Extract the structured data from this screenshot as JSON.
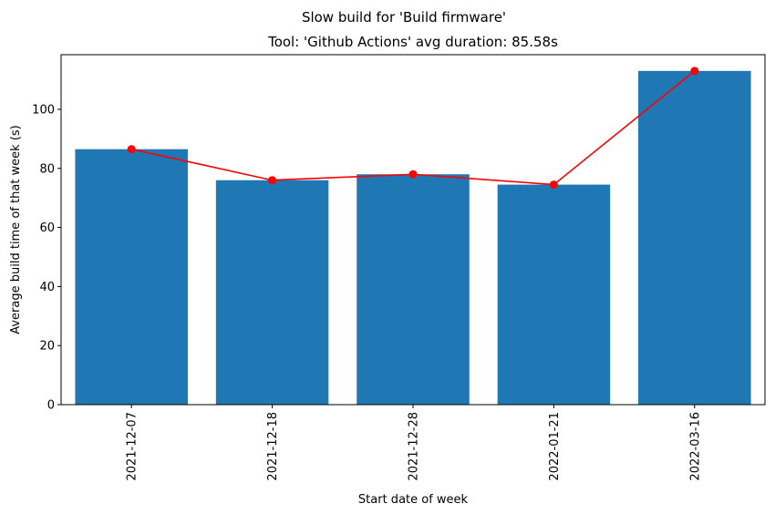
{
  "chart_data": {
    "type": "bar",
    "suptitle": "Slow build for 'Build firmware'",
    "title": "Tool: 'Github Actions' avg duration: 85.58s",
    "xlabel": "Start date of week",
    "ylabel": "Average build time of that week (s)",
    "categories": [
      "2021-12-07",
      "2021-12-18",
      "2021-12-28",
      "2022-01-21",
      "2022-03-16"
    ],
    "values": [
      86.5,
      76.0,
      78.0,
      74.5,
      113.0
    ],
    "line_values": [
      86.5,
      76.0,
      78.0,
      74.5,
      113.0
    ],
    "ylim": [
      0,
      118.5
    ],
    "yticks": [
      0,
      20,
      40,
      60,
      80,
      100
    ],
    "bar_color": "#1f77b4",
    "line_color": "#ff0000",
    "grid": false
  }
}
